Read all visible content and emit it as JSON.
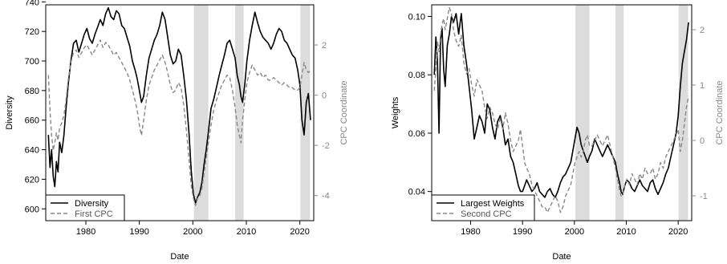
{
  "chart_data": [
    {
      "type": "line",
      "xlabel": "Date",
      "ylabel_left": "Diversity",
      "ylabel_right": "CPC Coordinate",
      "xlim": [
        1972.5,
        2022.6
      ],
      "ylim_left": [
        592,
        738
      ],
      "ylim_right": [
        -5.0,
        3.6
      ],
      "x_ticks": [
        1980,
        1990,
        2000,
        2010,
        2020
      ],
      "y_ticks_left": [
        600,
        620,
        640,
        660,
        680,
        700,
        720,
        740
      ],
      "y_ticks_right": [
        -4,
        -2,
        0,
        2
      ],
      "recession_bands": [
        [
          2000.2,
          2002.9
        ],
        [
          2007.9,
          2009.5
        ],
        [
          2020.1,
          2021.9
        ]
      ],
      "legend_position": "bottom-left",
      "series": [
        {
          "name": "Diversity",
          "axis": "left",
          "color": "#000000",
          "style": "solid",
          "x": [
            1973.0,
            1973.3,
            1973.6,
            1973.9,
            1974.2,
            1974.5,
            1974.8,
            1975.1,
            1975.5,
            1975.9,
            1976.3,
            1976.7,
            1977.2,
            1977.7,
            1978.2,
            1978.7,
            1979.2,
            1979.7,
            1980.2,
            1980.7,
            1981.2,
            1981.7,
            1982.2,
            1982.7,
            1983.2,
            1983.7,
            1984.2,
            1984.7,
            1985.2,
            1985.7,
            1986.2,
            1986.7,
            1987.2,
            1987.7,
            1988.2,
            1988.7,
            1989.2,
            1989.6,
            1990.0,
            1990.4,
            1990.8,
            1991.3,
            1991.8,
            1992.3,
            1992.8,
            1993.3,
            1993.8,
            1994.3,
            1994.8,
            1995.3,
            1995.8,
            1996.3,
            1996.8,
            1997.3,
            1997.8,
            1998.3,
            1998.8,
            1999.3,
            1999.7,
            2000.1,
            2000.5,
            2000.9,
            2001.3,
            2001.7,
            2002.1,
            2002.5,
            2002.9,
            2003.4,
            2003.9,
            2004.4,
            2004.9,
            2005.4,
            2005.9,
            2006.4,
            2006.9,
            2007.4,
            2007.9,
            2008.3,
            2008.7,
            2009.0,
            2009.3,
            2009.7,
            2010.1,
            2010.6,
            2011.1,
            2011.6,
            2012.1,
            2012.6,
            2013.1,
            2013.6,
            2014.1,
            2014.6,
            2015.1,
            2015.6,
            2016.1,
            2016.6,
            2017.1,
            2017.6,
            2018.1,
            2018.6,
            2019.1,
            2019.6,
            2020.0,
            2020.4,
            2020.8,
            2021.2,
            2021.6,
            2022.0
          ],
          "y": [
            650,
            628,
            640,
            622,
            615,
            632,
            625,
            645,
            638,
            650,
            668,
            684,
            700,
            712,
            714,
            706,
            712,
            718,
            722,
            715,
            712,
            718,
            723,
            728,
            724,
            732,
            736,
            730,
            728,
            734,
            732,
            724,
            722,
            716,
            710,
            700,
            694,
            688,
            680,
            672,
            676,
            690,
            702,
            708,
            714,
            718,
            724,
            733,
            728,
            716,
            704,
            698,
            700,
            708,
            704,
            690,
            674,
            650,
            626,
            610,
            604,
            608,
            611,
            618,
            630,
            640,
            652,
            668,
            674,
            682,
            690,
            697,
            704,
            712,
            714,
            708,
            702,
            690,
            684,
            676,
            672,
            684,
            700,
            714,
            724,
            733,
            726,
            720,
            716,
            714,
            712,
            708,
            712,
            718,
            722,
            720,
            714,
            712,
            708,
            704,
            702,
            694,
            684,
            660,
            650,
            672,
            678,
            660
          ]
        },
        {
          "name": "First CPC",
          "axis": "right",
          "color": "#888888",
          "style": "dashed",
          "x": [
            1973.0,
            1973.3,
            1973.6,
            1973.9,
            1974.2,
            1974.5,
            1974.8,
            1975.1,
            1975.5,
            1975.9,
            1976.3,
            1976.7,
            1977.2,
            1977.7,
            1978.2,
            1978.7,
            1979.2,
            1979.7,
            1980.2,
            1980.7,
            1981.2,
            1981.7,
            1982.2,
            1982.7,
            1983.2,
            1983.7,
            1984.2,
            1984.7,
            1985.2,
            1985.7,
            1986.2,
            1986.7,
            1987.2,
            1987.7,
            1988.2,
            1988.7,
            1989.2,
            1989.6,
            1990.0,
            1990.4,
            1990.8,
            1991.3,
            1991.8,
            1992.3,
            1992.8,
            1993.3,
            1993.8,
            1994.3,
            1994.8,
            1995.3,
            1995.8,
            1996.3,
            1996.8,
            1997.3,
            1997.8,
            1998.3,
            1998.8,
            1999.3,
            1999.7,
            2000.1,
            2000.5,
            2000.9,
            2001.3,
            2001.7,
            2002.1,
            2002.5,
            2002.9,
            2003.4,
            2003.9,
            2004.4,
            2004.9,
            2005.4,
            2005.9,
            2006.4,
            2006.9,
            2007.4,
            2007.9,
            2008.3,
            2008.7,
            2009.0,
            2009.3,
            2009.7,
            2010.1,
            2010.6,
            2011.1,
            2011.6,
            2012.1,
            2012.6,
            2013.1,
            2013.6,
            2014.1,
            2014.6,
            2015.1,
            2015.6,
            2016.1,
            2016.6,
            2017.1,
            2017.6,
            2018.1,
            2018.6,
            2019.1,
            2019.6,
            2020.0,
            2020.4,
            2020.8,
            2021.2,
            2021.6,
            2022.0
          ],
          "y": [
            0.8,
            -0.6,
            -1.6,
            -2.2,
            -1.9,
            -1.5,
            -1.8,
            -1.3,
            -1.1,
            -0.8,
            -0.2,
            0.6,
            1.3,
            1.7,
            1.8,
            1.5,
            1.7,
            1.9,
            2.0,
            1.8,
            1.6,
            1.8,
            2.0,
            2.2,
            1.9,
            2.1,
            2.0,
            1.8,
            1.6,
            1.7,
            1.5,
            1.3,
            1.1,
            0.9,
            0.6,
            0.2,
            -0.2,
            -0.6,
            -1.2,
            -1.6,
            -1.0,
            -0.2,
            0.4,
            0.7,
            1.0,
            1.2,
            1.4,
            1.6,
            1.3,
            0.9,
            0.4,
            0.1,
            0.2,
            0.5,
            0.3,
            -0.4,
            -1.4,
            -2.6,
            -3.6,
            -4.1,
            -4.4,
            -4.1,
            -4.0,
            -3.7,
            -3.1,
            -2.5,
            -1.9,
            -1.2,
            -0.6,
            -0.2,
            0.1,
            0.4,
            0.6,
            0.8,
            0.7,
            0.2,
            -0.5,
            -1.2,
            -1.6,
            -1.9,
            -1.0,
            -0.2,
            0.5,
            0.9,
            1.2,
            1.0,
            0.8,
            0.9,
            0.7,
            0.8,
            0.6,
            0.6,
            0.7,
            0.6,
            0.5,
            0.4,
            0.5,
            0.4,
            0.3,
            0.3,
            0.2,
            0.2,
            0.3,
            0.8,
            1.3,
            1.0,
            0.9,
            1.0
          ]
        }
      ]
    },
    {
      "type": "line",
      "xlabel": "Date",
      "ylabel_left": "Weights",
      "ylabel_right": "CPC Coordinate",
      "xlim": [
        1972.5,
        2022.6
      ],
      "ylim_left": [
        0.03,
        0.104
      ],
      "ylim_right": [
        -1.45,
        2.45
      ],
      "x_ticks": [
        1980,
        1990,
        2000,
        2010,
        2020
      ],
      "y_ticks_left": [
        0.04,
        0.06,
        0.08,
        0.1
      ],
      "y_ticks_right": [
        -1,
        0,
        1,
        2
      ],
      "recession_bands": [
        [
          2000.2,
          2002.9
        ],
        [
          2007.9,
          2009.5
        ],
        [
          2020.1,
          2021.9
        ]
      ],
      "legend_position": "bottom-left",
      "series": [
        {
          "name": "Largest Weights",
          "axis": "left",
          "color": "#000000",
          "style": "solid",
          "x": [
            1973.0,
            1973.3,
            1973.6,
            1973.9,
            1974.2,
            1974.5,
            1974.8,
            1975.1,
            1975.5,
            1975.9,
            1976.3,
            1976.7,
            1977.2,
            1977.7,
            1978.2,
            1978.7,
            1979.2,
            1979.7,
            1980.2,
            1980.7,
            1981.2,
            1981.7,
            1982.2,
            1982.7,
            1983.2,
            1983.7,
            1984.2,
            1984.7,
            1985.2,
            1985.7,
            1986.2,
            1986.7,
            1987.2,
            1987.7,
            1988.2,
            1988.7,
            1989.2,
            1989.6,
            1990.0,
            1990.4,
            1990.8,
            1991.3,
            1991.8,
            1992.3,
            1992.8,
            1993.3,
            1993.8,
            1994.3,
            1994.8,
            1995.3,
            1995.8,
            1996.3,
            1996.8,
            1997.3,
            1997.8,
            1998.3,
            1998.8,
            1999.3,
            1999.7,
            2000.1,
            2000.5,
            2000.9,
            2001.3,
            2001.7,
            2002.1,
            2002.5,
            2002.9,
            2003.4,
            2003.9,
            2004.4,
            2004.9,
            2005.4,
            2005.9,
            2006.4,
            2006.9,
            2007.4,
            2007.9,
            2008.3,
            2008.7,
            2009.0,
            2009.3,
            2009.7,
            2010.1,
            2010.6,
            2011.1,
            2011.6,
            2012.1,
            2012.6,
            2013.1,
            2013.6,
            2014.1,
            2014.6,
            2015.1,
            2015.6,
            2016.1,
            2016.6,
            2017.1,
            2017.6,
            2018.1,
            2018.6,
            2019.1,
            2019.6,
            2020.0,
            2020.4,
            2020.8,
            2021.2,
            2021.6,
            2022.0
          ],
          "y": [
            0.08,
            0.093,
            0.085,
            0.06,
            0.092,
            0.096,
            0.082,
            0.076,
            0.09,
            0.094,
            0.1,
            0.098,
            0.101,
            0.094,
            0.101,
            0.09,
            0.084,
            0.076,
            0.068,
            0.058,
            0.062,
            0.066,
            0.064,
            0.06,
            0.07,
            0.068,
            0.062,
            0.058,
            0.064,
            0.066,
            0.062,
            0.056,
            0.058,
            0.052,
            0.05,
            0.046,
            0.042,
            0.04,
            0.04,
            0.042,
            0.044,
            0.042,
            0.04,
            0.041,
            0.043,
            0.04,
            0.039,
            0.038,
            0.04,
            0.041,
            0.039,
            0.038,
            0.04,
            0.043,
            0.045,
            0.046,
            0.048,
            0.05,
            0.054,
            0.058,
            0.062,
            0.06,
            0.056,
            0.054,
            0.052,
            0.05,
            0.052,
            0.054,
            0.058,
            0.056,
            0.054,
            0.052,
            0.054,
            0.056,
            0.054,
            0.052,
            0.05,
            0.046,
            0.043,
            0.04,
            0.039,
            0.042,
            0.044,
            0.043,
            0.041,
            0.04,
            0.042,
            0.044,
            0.042,
            0.041,
            0.04,
            0.043,
            0.044,
            0.041,
            0.039,
            0.041,
            0.043,
            0.046,
            0.048,
            0.052,
            0.056,
            0.06,
            0.066,
            0.076,
            0.084,
            0.088,
            0.092,
            0.098
          ]
        },
        {
          "name": "Second CPC",
          "axis": "right",
          "color": "#888888",
          "style": "dashed",
          "x": [
            1973.0,
            1973.3,
            1973.6,
            1973.9,
            1974.2,
            1974.5,
            1974.8,
            1975.1,
            1975.5,
            1975.9,
            1976.3,
            1976.7,
            1977.2,
            1977.7,
            1978.2,
            1978.7,
            1979.2,
            1979.7,
            1980.2,
            1980.7,
            1981.2,
            1981.7,
            1982.2,
            1982.7,
            1983.2,
            1983.7,
            1984.2,
            1984.7,
            1985.2,
            1985.7,
            1986.2,
            1986.7,
            1987.2,
            1987.7,
            1988.2,
            1988.7,
            1989.2,
            1989.6,
            1990.0,
            1990.4,
            1990.8,
            1991.3,
            1991.8,
            1992.3,
            1992.8,
            1993.3,
            1993.8,
            1994.3,
            1994.8,
            1995.3,
            1995.8,
            1996.3,
            1996.8,
            1997.3,
            1997.8,
            1998.3,
            1998.8,
            1999.3,
            1999.7,
            2000.1,
            2000.5,
            2000.9,
            2001.3,
            2001.7,
            2002.1,
            2002.5,
            2002.9,
            2003.4,
            2003.9,
            2004.4,
            2004.9,
            2005.4,
            2005.9,
            2006.4,
            2006.9,
            2007.4,
            2007.9,
            2008.3,
            2008.7,
            2009.0,
            2009.3,
            2009.7,
            2010.1,
            2010.6,
            2011.1,
            2011.6,
            2012.1,
            2012.6,
            2013.1,
            2013.6,
            2014.1,
            2014.6,
            2015.1,
            2015.6,
            2016.1,
            2016.6,
            2017.1,
            2017.6,
            2018.1,
            2018.6,
            2019.1,
            2019.6,
            2020.0,
            2020.4,
            2020.8,
            2021.2,
            2021.6,
            2022.0
          ],
          "y": [
            0.9,
            1.3,
            1.8,
            1.6,
            1.9,
            2.1,
            2.2,
            2.0,
            2.2,
            2.4,
            2.3,
            2.0,
            1.8,
            1.7,
            1.9,
            1.4,
            1.2,
            1.3,
            1.0,
            0.8,
            1.1,
            1.0,
            0.9,
            0.6,
            0.4,
            0.6,
            0.5,
            0.3,
            0.2,
            0.4,
            0.2,
            0.5,
            0.3,
            0.0,
            -0.2,
            -0.1,
            0.0,
            0.2,
            -0.1,
            -0.4,
            -0.5,
            -0.6,
            -0.8,
            -0.9,
            -1.0,
            -1.1,
            -1.2,
            -1.2,
            -1.3,
            -1.2,
            -1.1,
            -1.0,
            -1.1,
            -1.3,
            -1.2,
            -1.0,
            -0.9,
            -0.8,
            -0.6,
            -0.4,
            -0.3,
            -0.2,
            -0.3,
            -0.2,
            0.0,
            0.1,
            -0.1,
            -0.1,
            0.0,
            0.1,
            0.0,
            -0.1,
            0.0,
            0.1,
            -0.1,
            -0.3,
            -0.5,
            -0.7,
            -0.9,
            -1.0,
            -1.0,
            -0.8,
            -0.7,
            -0.8,
            -0.6,
            -0.7,
            -0.8,
            -0.6,
            -0.7,
            -0.5,
            -0.6,
            -0.6,
            -0.5,
            -0.7,
            -0.6,
            -0.4,
            -0.5,
            -0.3,
            -0.2,
            -0.1,
            0.0,
            0.1,
            0.2,
            -0.2,
            0.0,
            0.3,
            0.6,
            0.8
          ]
        }
      ]
    }
  ]
}
